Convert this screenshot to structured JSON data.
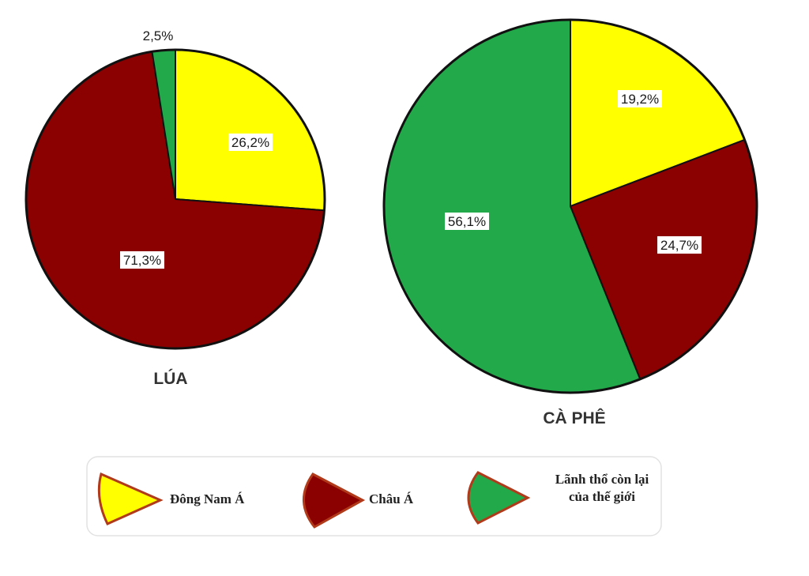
{
  "chart_data": [
    {
      "type": "pie",
      "title": "LÚA",
      "slices": [
        {
          "name": "Đông Nam Á",
          "value": 26.2,
          "label": "26,2%"
        },
        {
          "name": "Châu Á",
          "value": 71.3,
          "label": "71,3%"
        },
        {
          "name": "Lãnh thổ còn lại của thế giới",
          "value": 2.5,
          "label": "2,5%"
        }
      ]
    },
    {
      "type": "pie",
      "title": "CÀ PHÊ",
      "slices": [
        {
          "name": "Đông Nam Á",
          "value": 19.2,
          "label": "19,2%"
        },
        {
          "name": "Châu Á",
          "value": 24.7,
          "label": "24,7%"
        },
        {
          "name": "Lãnh thổ còn lại của thế giới",
          "value": 56.1,
          "label": "56,1%"
        }
      ]
    }
  ],
  "legend": {
    "items": [
      {
        "key": "dna",
        "lines": [
          "Đông Nam Á"
        ],
        "color": "#ffff00"
      },
      {
        "key": "ca",
        "lines": [
          "Châu Á"
        ],
        "color": "#8b0000"
      },
      {
        "key": "ltcl",
        "lines": [
          "Lãnh thổ còn lại",
          "của thế giới"
        ],
        "color": "#22a94a"
      }
    ],
    "placement": "bottom"
  },
  "colors": {
    "Đông Nam Á": "#ffff00",
    "Châu Á": "#8b0000",
    "Lãnh thổ còn lại của thế giới": "#22a94a",
    "outline": "#111111"
  }
}
